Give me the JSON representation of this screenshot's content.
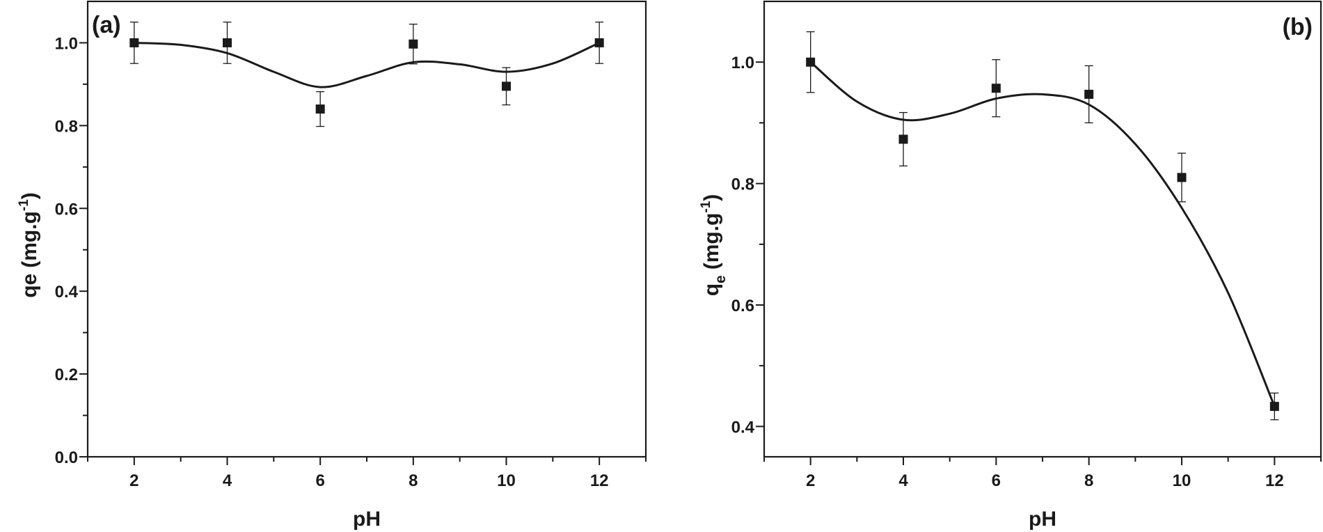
{
  "chart_data": [
    {
      "type": "scatter",
      "panel_label": "(a)",
      "xlabel": "pH",
      "ylabel": {
        "main": "qe",
        "unit": "(mg.g",
        "sup": "-1",
        "close": ")"
      },
      "xlim": [
        1,
        13
      ],
      "ylim": [
        0,
        1.1
      ],
      "xticks": [
        2,
        4,
        6,
        8,
        10,
        12
      ],
      "yticks": [
        0.0,
        0.2,
        0.4,
        0.6,
        0.8,
        1.0
      ],
      "yminor": [
        0.1,
        0.3,
        0.5,
        0.7,
        0.9
      ],
      "ytick_labels": [
        "0.0",
        "0.2",
        "0.4",
        "0.6",
        "0.8",
        "1.0"
      ],
      "grid": false,
      "series": [
        {
          "x": [
            2,
            4,
            6,
            8,
            10,
            12
          ],
          "y": [
            1.0,
            1.0,
            0.84,
            0.997,
            0.895,
            1.0
          ],
          "error": [
            0.05,
            0.05,
            0.042,
            0.048,
            0.045,
            0.05
          ],
          "marker": "square"
        }
      ],
      "fit_curve": {
        "x": [
          2,
          3,
          4,
          5,
          6,
          7,
          8,
          9,
          10,
          11,
          12
        ],
        "y": [
          1.0,
          0.995,
          0.975,
          0.93,
          0.893,
          0.92,
          0.953,
          0.948,
          0.93,
          0.95,
          1.0
        ]
      }
    },
    {
      "type": "scatter",
      "panel_label": "(b)",
      "xlabel": "pH",
      "ylabel": {
        "main": "q",
        "sub": "e",
        "unit": "(mg.g",
        "sup": "-1",
        "close": ")"
      },
      "xlim": [
        1,
        13
      ],
      "ylim": [
        0.35,
        1.1
      ],
      "xticks": [
        2,
        4,
        6,
        8,
        10,
        12
      ],
      "yticks": [
        0.4,
        0.6,
        0.8,
        1.0
      ],
      "yminor": [
        0.5,
        0.7,
        0.9
      ],
      "ytick_labels": [
        "0.4",
        "0.6",
        "0.8",
        "1.0"
      ],
      "grid": false,
      "series": [
        {
          "x": [
            2,
            4,
            6,
            8,
            10,
            12
          ],
          "y": [
            1.0,
            0.873,
            0.957,
            0.947,
            0.81,
            0.433
          ],
          "error": [
            0.05,
            0.044,
            0.047,
            0.047,
            0.04,
            0.022
          ],
          "marker": "square"
        }
      ],
      "fit_curve": {
        "x": [
          2,
          3,
          4,
          5,
          6,
          7,
          8,
          9,
          10,
          11,
          12
        ],
        "y": [
          1.0,
          0.935,
          0.905,
          0.915,
          0.94,
          0.947,
          0.93,
          0.865,
          0.76,
          0.62,
          0.433
        ]
      }
    }
  ]
}
